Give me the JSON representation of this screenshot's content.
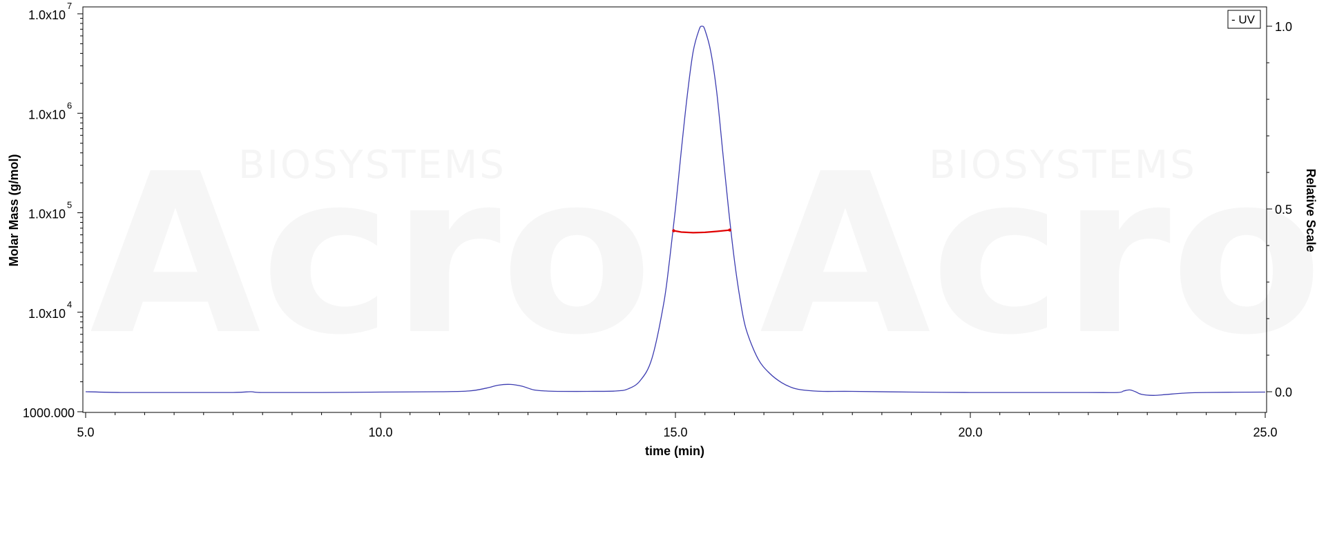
{
  "chart_data": {
    "type": "line",
    "xlabel": "time (min)",
    "ylabel_left": "Molar Mass (g/mol)",
    "ylabel_right": "Relative Scale",
    "x_range": [
      5.0,
      25.0
    ],
    "x_ticks": [
      {
        "value": 5.0,
        "label": "5.0"
      },
      {
        "value": 10.0,
        "label": "10.0"
      },
      {
        "value": 15.0,
        "label": "15.0"
      },
      {
        "value": 20.0,
        "label": "20.0"
      },
      {
        "value": 25.0,
        "label": "25.0"
      }
    ],
    "y_left_scale": "log",
    "y_left_range": [
      1000,
      10000000
    ],
    "y_left_ticks": [
      {
        "value": 1000,
        "label": "1000.000"
      },
      {
        "value": 10000,
        "base": "1.0x10",
        "exp": "4"
      },
      {
        "value": 100000,
        "base": "1.0x10",
        "exp": "5"
      },
      {
        "value": 1000000,
        "base": "1.0x10",
        "exp": "6"
      },
      {
        "value": 10000000,
        "base": "1.0x10",
        "exp": "7"
      }
    ],
    "y_right_range": [
      -0.05,
      1.05
    ],
    "y_right_ticks": [
      {
        "value": 0.0,
        "label": "0.0"
      },
      {
        "value": 0.5,
        "label": "0.5"
      },
      {
        "value": 1.0,
        "label": "1.0"
      }
    ],
    "legend": {
      "position": "top-right",
      "entries": [
        {
          "label": "- UV"
        }
      ]
    },
    "series": [
      {
        "name": "UV",
        "axis": "right",
        "color": "#3b3bb0",
        "points": [
          [
            5.0,
            0.0
          ],
          [
            5.6,
            -0.002
          ],
          [
            6.5,
            -0.002
          ],
          [
            7.5,
            -0.002
          ],
          [
            7.8,
            0.0
          ],
          [
            8.0,
            -0.002
          ],
          [
            9.0,
            -0.002
          ],
          [
            10.0,
            -0.001
          ],
          [
            11.0,
            0.0
          ],
          [
            11.5,
            0.002
          ],
          [
            11.8,
            0.01
          ],
          [
            12.0,
            0.018
          ],
          [
            12.2,
            0.02
          ],
          [
            12.4,
            0.015
          ],
          [
            12.6,
            0.005
          ],
          [
            12.8,
            0.002
          ],
          [
            13.0,
            0.001
          ],
          [
            13.5,
            0.001
          ],
          [
            14.0,
            0.002
          ],
          [
            14.2,
            0.008
          ],
          [
            14.4,
            0.03
          ],
          [
            14.6,
            0.09
          ],
          [
            14.8,
            0.24
          ],
          [
            14.9,
            0.36
          ],
          [
            15.0,
            0.5
          ],
          [
            15.1,
            0.66
          ],
          [
            15.2,
            0.81
          ],
          [
            15.3,
            0.93
          ],
          [
            15.4,
            0.99
          ],
          [
            15.45,
            1.0
          ],
          [
            15.5,
            0.99
          ],
          [
            15.6,
            0.93
          ],
          [
            15.7,
            0.82
          ],
          [
            15.8,
            0.66
          ],
          [
            15.9,
            0.5
          ],
          [
            16.0,
            0.36
          ],
          [
            16.1,
            0.25
          ],
          [
            16.2,
            0.17
          ],
          [
            16.4,
            0.09
          ],
          [
            16.6,
            0.05
          ],
          [
            16.8,
            0.025
          ],
          [
            17.0,
            0.01
          ],
          [
            17.2,
            0.004
          ],
          [
            17.5,
            0.001
          ],
          [
            18.0,
            0.001
          ],
          [
            19.0,
            -0.001
          ],
          [
            20.0,
            -0.002
          ],
          [
            21.0,
            -0.002
          ],
          [
            22.0,
            -0.002
          ],
          [
            22.5,
            -0.002
          ],
          [
            22.6,
            0.002
          ],
          [
            22.7,
            0.005
          ],
          [
            22.8,
            0.0
          ],
          [
            22.9,
            -0.007
          ],
          [
            23.1,
            -0.01
          ],
          [
            23.3,
            -0.008
          ],
          [
            23.6,
            -0.004
          ],
          [
            24.0,
            -0.002
          ],
          [
            25.0,
            -0.001
          ]
        ]
      },
      {
        "name": "Molar Mass",
        "axis": "left",
        "color": "#e00000",
        "points": [
          [
            14.97,
            66000
          ],
          [
            15.1,
            64000
          ],
          [
            15.3,
            63000
          ],
          [
            15.5,
            63500
          ],
          [
            15.7,
            65000
          ],
          [
            15.92,
            67000
          ]
        ]
      }
    ]
  },
  "watermark": {
    "brand_large": "Acro",
    "brand_small": "BIOSYSTEMS"
  }
}
